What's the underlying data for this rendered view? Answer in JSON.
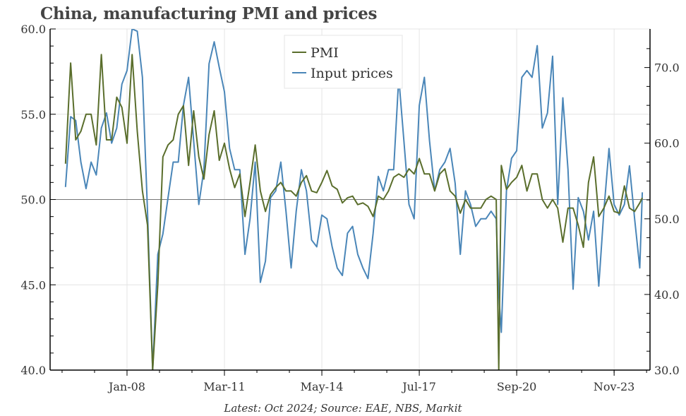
{
  "chart_data": {
    "type": "line",
    "title": "China, manufacturing PMI and prices",
    "source_note": "Latest: Oct 2024; Source: EAE, NBS, Markit",
    "x_tick_labels": [
      "Jan-08",
      "Mar-11",
      "May-14",
      "Jul-17",
      "Sep-20",
      "Nov-23"
    ],
    "x_tick_dates": [
      "2008-01",
      "2011-03",
      "2014-05",
      "2017-07",
      "2020-09",
      "2023-11"
    ],
    "xlim": [
      "2005-07",
      "2025-01"
    ],
    "y_left": {
      "range": [
        40,
        60
      ],
      "ticks": [
        "40.0",
        "45.0",
        "50.0",
        "55.0",
        "60.0"
      ],
      "tick_values": [
        40,
        45,
        50,
        55,
        60
      ],
      "reference_line": 50
    },
    "y_right": {
      "range": [
        30,
        75.1
      ],
      "ticks": [
        "30.0",
        "40.0",
        "50.0",
        "60.0",
        "70.0"
      ],
      "tick_values": [
        30,
        40,
        50,
        60,
        70
      ]
    },
    "grid": true,
    "legend": "top-center",
    "x": [
      "2006-01",
      "2006-03",
      "2006-05",
      "2006-07",
      "2006-09",
      "2006-11",
      "2007-01",
      "2007-03",
      "2007-05",
      "2007-07",
      "2007-09",
      "2007-11",
      "2008-01",
      "2008-03",
      "2008-05",
      "2008-07",
      "2008-09",
      "2008-11",
      "2009-01",
      "2009-03",
      "2009-05",
      "2009-07",
      "2009-09",
      "2009-11",
      "2010-01",
      "2010-03",
      "2010-05",
      "2010-07",
      "2010-09",
      "2010-11",
      "2011-01",
      "2011-03",
      "2011-05",
      "2011-07",
      "2011-09",
      "2011-11",
      "2012-01",
      "2012-03",
      "2012-05",
      "2012-07",
      "2012-09",
      "2012-11",
      "2013-01",
      "2013-03",
      "2013-05",
      "2013-07",
      "2013-09",
      "2013-11",
      "2014-01",
      "2014-03",
      "2014-05",
      "2014-07",
      "2014-09",
      "2014-11",
      "2015-01",
      "2015-03",
      "2015-05",
      "2015-07",
      "2015-09",
      "2015-11",
      "2016-01",
      "2016-03",
      "2016-05",
      "2016-07",
      "2016-09",
      "2016-11",
      "2017-01",
      "2017-03",
      "2017-05",
      "2017-07",
      "2017-09",
      "2017-11",
      "2018-01",
      "2018-03",
      "2018-05",
      "2018-07",
      "2018-09",
      "2018-11",
      "2019-01",
      "2019-03",
      "2019-05",
      "2019-07",
      "2019-09",
      "2019-11",
      "2020-01",
      "2020-02",
      "2020-03",
      "2020-05",
      "2020-07",
      "2020-09",
      "2020-11",
      "2021-01",
      "2021-03",
      "2021-05",
      "2021-07",
      "2021-09",
      "2021-11",
      "2022-01",
      "2022-03",
      "2022-05",
      "2022-07",
      "2022-09",
      "2022-11",
      "2023-01",
      "2023-03",
      "2023-05",
      "2023-07",
      "2023-09",
      "2023-11",
      "2024-01",
      "2024-03",
      "2024-05",
      "2024-07",
      "2024-09",
      "2024-10"
    ],
    "series": [
      {
        "name": "PMI",
        "axis": "left",
        "color": "#5a6e2c",
        "values": [
          52.1,
          58.0,
          53.5,
          54.0,
          55.0,
          55.0,
          53.2,
          58.5,
          53.5,
          53.5,
          56.0,
          55.4,
          53.3,
          58.5,
          54.0,
          50.5,
          48.5,
          38.8,
          45.0,
          52.5,
          53.2,
          53.5,
          55.0,
          55.5,
          52.0,
          55.2,
          52.5,
          51.2,
          53.8,
          55.2,
          52.3,
          53.3,
          51.8,
          50.7,
          51.5,
          49.0,
          51.0,
          53.2,
          50.5,
          49.3,
          50.3,
          50.7,
          51.0,
          50.5,
          50.5,
          50.2,
          51.0,
          51.4,
          50.5,
          50.4,
          51.0,
          51.7,
          50.8,
          50.6,
          49.8,
          50.1,
          50.2,
          49.7,
          49.8,
          49.6,
          49.0,
          50.2,
          50.0,
          50.5,
          51.3,
          51.5,
          51.3,
          51.8,
          51.5,
          52.4,
          51.5,
          51.5,
          50.5,
          51.5,
          51.8,
          50.5,
          50.2,
          49.2,
          50.0,
          49.5,
          49.5,
          49.5,
          50.0,
          50.2,
          50.0,
          35.7,
          52.0,
          50.6,
          51.0,
          51.3,
          52.0,
          50.5,
          51.5,
          51.5,
          50.0,
          49.5,
          50.0,
          49.5,
          47.5,
          49.5,
          49.5,
          48.5,
          47.2,
          51.0,
          52.5,
          49.0,
          49.5,
          50.2,
          49.3,
          49.2,
          50.8,
          49.5,
          49.3,
          49.8,
          50.1
        ]
      },
      {
        "name": "Input prices",
        "axis": "right",
        "color": "#4a86b8",
        "values": [
          54.2,
          63.5,
          63.0,
          57.5,
          54.0,
          57.5,
          55.8,
          62.0,
          64.0,
          60.0,
          62.0,
          67.8,
          69.6,
          76.0,
          74.8,
          68.7,
          51.0,
          28.0,
          45.3,
          48.0,
          52.8,
          57.5,
          57.5,
          65.0,
          68.7,
          60.3,
          51.9,
          56.5,
          70.5,
          73.4,
          70.0,
          66.8,
          59.3,
          56.5,
          56.5,
          45.3,
          50.0,
          57.5,
          41.6,
          44.4,
          52.8,
          53.7,
          57.5,
          51.0,
          43.5,
          51.0,
          56.5,
          53.7,
          47.2,
          46.3,
          50.5,
          50.0,
          46.3,
          43.5,
          42.5,
          48.1,
          49.0,
          45.3,
          43.5,
          42.1,
          48.1,
          55.6,
          53.7,
          56.5,
          56.5,
          68.7,
          60.3,
          51.9,
          50.0,
          65.0,
          68.7,
          60.3,
          53.7,
          56.5,
          57.5,
          59.3,
          54.7,
          45.3,
          53.7,
          51.9,
          49.0,
          50.0,
          50.0,
          51.0,
          50.0,
          40.0,
          35.0,
          53.7,
          58.0,
          59.0,
          68.7,
          69.6,
          68.7,
          72.9,
          62.0,
          64.0,
          71.5,
          51.9,
          66.0,
          56.5,
          40.7,
          52.8,
          51.0,
          47.2,
          51.0,
          41.1,
          51.0,
          59.3,
          51.9,
          50.5,
          51.9,
          57.0,
          50.0,
          43.5,
          53.5
        ]
      }
    ]
  }
}
